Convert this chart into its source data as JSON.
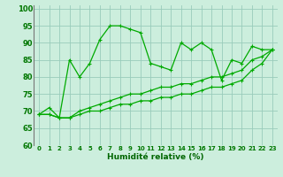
{
  "title": "",
  "xlabel": "Humidité relative (%)",
  "ylabel": "",
  "bg_color": "#cceedd",
  "grid_color": "#99ccbb",
  "line_color": "#00aa00",
  "xlim": [
    -0.5,
    23.5
  ],
  "ylim": [
    60,
    101
  ],
  "yticks": [
    60,
    65,
    70,
    75,
    80,
    85,
    90,
    95,
    100
  ],
  "xticks": [
    0,
    1,
    2,
    3,
    4,
    5,
    6,
    7,
    8,
    9,
    10,
    11,
    12,
    13,
    14,
    15,
    16,
    17,
    18,
    19,
    20,
    21,
    22,
    23
  ],
  "series": [
    [
      69,
      71,
      68,
      85,
      80,
      84,
      91,
      95,
      95,
      94,
      93,
      84,
      83,
      82,
      90,
      88,
      90,
      88,
      79,
      85,
      84,
      89,
      88,
      88
    ],
    [
      69,
      69,
      68,
      68,
      70,
      71,
      72,
      73,
      74,
      75,
      75,
      76,
      77,
      77,
      78,
      78,
      79,
      80,
      80,
      81,
      82,
      85,
      86,
      88
    ],
    [
      69,
      69,
      68,
      68,
      69,
      70,
      70,
      71,
      72,
      72,
      73,
      73,
      74,
      74,
      75,
      75,
      76,
      77,
      77,
      78,
      79,
      82,
      84,
      88
    ]
  ]
}
